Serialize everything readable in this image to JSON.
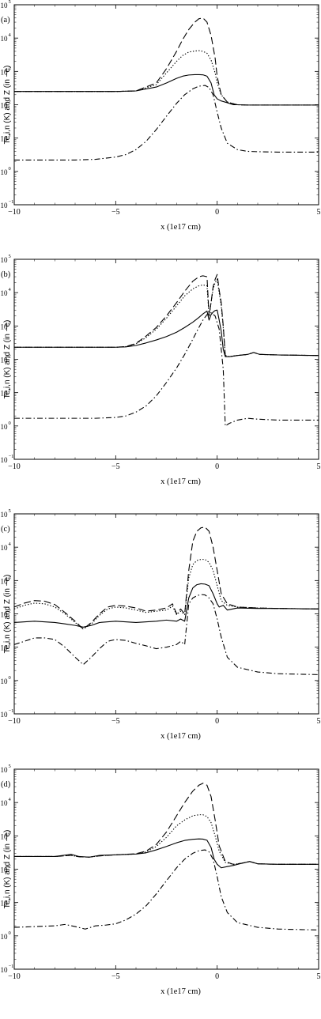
{
  "chart_data": [
    {
      "type": "line",
      "panel_label": "(a)",
      "ylabel": "Te,i,n (K) and Z (in −e)",
      "xlabel": "x (1e17 cm)",
      "xlim": [
        -10,
        5
      ],
      "ylim_log10": [
        -1,
        5
      ],
      "y_scale": "log",
      "x_ticks": [
        "−10",
        "−5",
        "0",
        "5"
      ],
      "y_ticks": [
        "10⁻¹",
        "10⁰",
        "10¹",
        "10²",
        "10³",
        "10⁴",
        "10⁵"
      ],
      "grid": false,
      "series": [
        {
          "style": "dashed",
          "x": [
            -10,
            -7,
            -5,
            -4,
            -3,
            -2.5,
            -2,
            -1.7,
            -1.4,
            -1.1,
            -0.9,
            -0.7,
            -0.5,
            -0.3,
            -0.1,
            0,
            0.2,
            0.5,
            1,
            1.5,
            2,
            3,
            5
          ],
          "y": [
            250,
            250,
            250,
            260,
            450,
            1200,
            4000,
            9000,
            18000,
            30000,
            38000,
            40000,
            30000,
            12000,
            2500,
            700,
            200,
            120,
            100,
            98,
            98,
            98,
            98
          ]
        },
        {
          "style": "dotted",
          "x": [
            -10,
            -7,
            -5,
            -4,
            -3,
            -2.5,
            -2,
            -1.7,
            -1.4,
            -1.1,
            -0.9,
            -0.7,
            -0.5,
            -0.3,
            -0.1,
            0,
            0.2,
            0.5,
            1,
            1.5,
            2,
            3,
            5
          ],
          "y": [
            250,
            250,
            250,
            260,
            400,
            900,
            2000,
            3000,
            3800,
            4100,
            4200,
            4000,
            3500,
            2200,
            900,
            450,
            200,
            120,
            100,
            98,
            98,
            98,
            98
          ]
        },
        {
          "style": "solid",
          "x": [
            -10,
            -7,
            -5,
            -4,
            -3,
            -2.5,
            -2,
            -1.7,
            -1.4,
            -1.1,
            -0.9,
            -0.7,
            -0.5,
            -0.3,
            -0.15,
            0,
            0.2,
            0.5,
            0.8,
            1,
            1.5,
            2,
            3,
            5
          ],
          "y": [
            250,
            250,
            250,
            260,
            340,
            450,
            620,
            720,
            780,
            800,
            800,
            790,
            720,
            450,
            200,
            150,
            130,
            115,
            100,
            100,
            98,
            98,
            98,
            98
          ]
        },
        {
          "style": "dash-dot",
          "x": [
            -10,
            -7,
            -6,
            -5,
            -4.5,
            -4,
            -3.5,
            -3,
            -2.5,
            -2,
            -1.6,
            -1.2,
            -0.9,
            -0.6,
            -0.4,
            -0.2,
            0,
            0.2,
            0.5,
            1,
            1.5,
            2,
            3,
            5
          ],
          "y": [
            2.2,
            2.2,
            2.3,
            2.7,
            3.2,
            4.5,
            8,
            18,
            45,
            110,
            200,
            300,
            360,
            380,
            330,
            200,
            60,
            20,
            7,
            4.5,
            4,
            3.9,
            3.8,
            3.8
          ]
        }
      ]
    },
    {
      "type": "line",
      "panel_label": "(b)",
      "ylabel": "Te,i,n (K) and Z (in −e)",
      "xlabel": "x (1e17 cm)",
      "xlim": [
        -10,
        5
      ],
      "ylim_log10": [
        -1,
        5
      ],
      "y_scale": "log",
      "x_ticks": [
        "−10",
        "−5",
        "0",
        "5"
      ],
      "y_ticks": [
        "10⁻¹",
        "10⁰",
        "10¹",
        "10²",
        "10³",
        "10⁴",
        "10⁵"
      ],
      "grid": false,
      "series": [
        {
          "style": "dashed",
          "x": [
            -10,
            -6,
            -5,
            -4.5,
            -4,
            -3.5,
            -3,
            -2.5,
            -2,
            -1.6,
            -1.2,
            -0.9,
            -0.7,
            -0.5,
            -0.4,
            -0.3,
            -0.2,
            -0.1,
            0,
            0.1,
            0.2,
            0.3,
            0.4,
            0.6,
            1,
            1.5,
            1.8,
            2.1,
            3,
            5
          ],
          "y": [
            230,
            230,
            230,
            240,
            300,
            500,
            900,
            2000,
            5000,
            11000,
            22000,
            30000,
            32000,
            30000,
            2000,
            5000,
            15000,
            25000,
            35000,
            12000,
            5000,
            1000,
            130,
            120,
            130,
            140,
            160,
            140,
            135,
            130
          ]
        },
        {
          "style": "dotted",
          "x": [
            -10,
            -6,
            -5,
            -4.5,
            -4,
            -3.5,
            -3,
            -2.5,
            -2,
            -1.6,
            -1.2,
            -0.9,
            -0.7,
            -0.5,
            -0.4,
            -0.3,
            -0.2,
            -0.1,
            0,
            0.1,
            0.2,
            0.3,
            0.4,
            0.6,
            1,
            1.5,
            1.8,
            2.1,
            3,
            5
          ],
          "y": [
            230,
            230,
            230,
            240,
            290,
            450,
            800,
            1700,
            4000,
            8000,
            13000,
            16000,
            17000,
            16000,
            2000,
            5000,
            13000,
            20000,
            25000,
            10000,
            4000,
            900,
            130,
            120,
            130,
            140,
            160,
            140,
            135,
            130
          ]
        },
        {
          "style": "solid",
          "x": [
            -10,
            -6,
            -5,
            -4.5,
            -4,
            -3.5,
            -3,
            -2.5,
            -2,
            -1.6,
            -1.2,
            -0.9,
            -0.7,
            -0.5,
            -0.4,
            -0.3,
            -0.2,
            -0.1,
            0,
            0.1,
            0.2,
            0.3,
            0.4,
            0.6,
            1,
            1.5,
            1.8,
            2.1,
            3,
            5
          ],
          "y": [
            230,
            230,
            230,
            235,
            260,
            310,
            380,
            480,
            650,
            900,
            1300,
            1800,
            2300,
            2800,
            1500,
            2200,
            2600,
            2900,
            3000,
            1500,
            700,
            200,
            120,
            120,
            130,
            140,
            160,
            140,
            135,
            130
          ]
        },
        {
          "style": "dash-dot",
          "x": [
            -10,
            -6,
            -5,
            -4.5,
            -4,
            -3.5,
            -3,
            -2.5,
            -2,
            -1.6,
            -1.2,
            -0.9,
            -0.7,
            -0.5,
            -0.3,
            -0.1,
            0.1,
            0.3,
            0.4,
            0.6,
            1,
            1.5,
            2,
            3,
            5
          ],
          "y": [
            1.7,
            1.7,
            1.8,
            2,
            2.6,
            4,
            8,
            20,
            55,
            140,
            400,
            900,
            1500,
            2200,
            2500,
            2000,
            800,
            50,
            1,
            1.2,
            1.5,
            1.7,
            1.6,
            1.5,
            1.5
          ]
        }
      ]
    },
    {
      "type": "line",
      "panel_label": "(c)",
      "ylabel": "Te,i,n (K) and Z (in −e)",
      "xlabel": "x (1e17 cm)",
      "xlim": [
        -10,
        5
      ],
      "ylim_log10": [
        -1,
        5
      ],
      "y_scale": "log",
      "x_ticks": [
        "−10",
        "−5",
        "0",
        "5"
      ],
      "y_ticks": [
        "10⁻¹",
        "10⁰",
        "10¹",
        "10²",
        "10³",
        "10⁴",
        "10⁵"
      ],
      "grid": false,
      "series": [
        {
          "style": "dashed",
          "x": [
            -10,
            -9.5,
            -9,
            -8.5,
            -8,
            -7.5,
            -7,
            -6.6,
            -6.2,
            -5.8,
            -5.4,
            -5,
            -4.5,
            -4,
            -3.5,
            -3,
            -2.5,
            -2.2,
            -2,
            -1.8,
            -1.6,
            -1.4,
            -1.2,
            -1,
            -0.8,
            -0.6,
            -0.4,
            -0.2,
            0,
            0.2,
            0.5,
            1,
            2,
            3,
            5
          ],
          "y": [
            160,
            210,
            250,
            240,
            190,
            110,
            60,
            35,
            55,
            100,
            160,
            180,
            170,
            150,
            120,
            130,
            150,
            200,
            100,
            140,
            100,
            2000,
            15000,
            30000,
            38000,
            40000,
            30000,
            10000,
            2000,
            400,
            200,
            160,
            150,
            145,
            140
          ]
        },
        {
          "style": "dotted",
          "x": [
            -10,
            -9.5,
            -9,
            -8.5,
            -8,
            -7.5,
            -7,
            -6.6,
            -6.2,
            -5.8,
            -5.4,
            -5,
            -4.5,
            -4,
            -3.5,
            -3,
            -2.5,
            -2.2,
            -2,
            -1.8,
            -1.6,
            -1.4,
            -1.2,
            -1,
            -0.8,
            -0.6,
            -0.4,
            -0.2,
            0,
            0.2,
            0.5,
            1,
            2,
            3,
            5
          ],
          "y": [
            140,
            180,
            210,
            200,
            160,
            100,
            55,
            35,
            50,
            90,
            140,
            160,
            150,
            130,
            110,
            120,
            130,
            170,
            95,
            120,
            95,
            1200,
            3000,
            4000,
            4300,
            4300,
            3500,
            2000,
            700,
            250,
            180,
            160,
            150,
            145,
            140
          ]
        },
        {
          "style": "solid",
          "x": [
            -10,
            -9,
            -8,
            -7.5,
            -7,
            -6.6,
            -6.2,
            -5.8,
            -5,
            -4,
            -3,
            -2.5,
            -2,
            -1.8,
            -1.6,
            -1.4,
            -1.2,
            -1,
            -0.8,
            -0.6,
            -0.4,
            -0.2,
            0,
            0.1,
            0.3,
            0.5,
            1,
            2,
            3,
            5
          ],
          "y": [
            55,
            60,
            55,
            50,
            45,
            40,
            45,
            55,
            60,
            55,
            60,
            65,
            60,
            70,
            60,
            300,
            600,
            750,
            800,
            780,
            700,
            400,
            200,
            160,
            180,
            130,
            150,
            145,
            145,
            140
          ]
        },
        {
          "style": "dash-dot",
          "x": [
            -10,
            -9.5,
            -9,
            -8.5,
            -8,
            -7.5,
            -7,
            -6.6,
            -6.2,
            -5.8,
            -5.4,
            -5,
            -4.5,
            -4,
            -3.5,
            -3,
            -2.5,
            -2,
            -1.8,
            -1.6,
            -1.4,
            -1.2,
            -1,
            -0.8,
            -0.6,
            -0.4,
            -0.2,
            0,
            0.2,
            0.5,
            1,
            2,
            3,
            5
          ],
          "y": [
            12,
            15,
            19,
            19,
            17,
            10,
            5,
            3,
            5,
            9,
            15,
            17,
            16,
            13,
            11,
            9,
            10,
            12,
            15,
            12,
            200,
            300,
            350,
            380,
            370,
            300,
            200,
            70,
            20,
            5,
            2.5,
            1.8,
            1.6,
            1.5
          ]
        }
      ]
    },
    {
      "type": "line",
      "panel_label": "(d)",
      "ylabel": "Te,i,n (K) and Z (in −e)",
      "xlabel": "x (1e17 cm)",
      "xlim": [
        -10,
        5
      ],
      "ylim_log10": [
        -1,
        5
      ],
      "y_scale": "log",
      "x_ticks": [
        "−10",
        "−5",
        "0",
        "5"
      ],
      "y_ticks": [
        "10⁻¹",
        "10⁰",
        "10¹",
        "10²",
        "10³",
        "10⁴",
        "10⁵"
      ],
      "grid": false,
      "series": [
        {
          "style": "dashed",
          "x": [
            -10,
            -8,
            -7.2,
            -6.8,
            -6.3,
            -5.8,
            -5,
            -4,
            -3.5,
            -3,
            -2.5,
            -2,
            -1.6,
            -1.2,
            -0.9,
            -0.7,
            -0.5,
            -0.3,
            -0.1,
            0.1,
            0.4,
            0.8,
            1.2,
            1.6,
            2,
            3,
            5
          ],
          "y": [
            240,
            240,
            260,
            235,
            230,
            250,
            270,
            290,
            350,
            550,
            1300,
            4000,
            10000,
            22000,
            33000,
            38000,
            33000,
            15000,
            3000,
            500,
            170,
            140,
            150,
            170,
            145,
            140,
            140
          ]
        },
        {
          "style": "dotted",
          "x": [
            -10,
            -8,
            -7.2,
            -6.8,
            -6.3,
            -5.8,
            -5,
            -4,
            -3.5,
            -3,
            -2.5,
            -2,
            -1.6,
            -1.2,
            -0.9,
            -0.7,
            -0.5,
            -0.3,
            -0.1,
            0.1,
            0.4,
            0.8,
            1.2,
            1.6,
            2,
            3,
            5
          ],
          "y": [
            240,
            240,
            260,
            235,
            230,
            250,
            270,
            285,
            330,
            480,
            900,
            2000,
            3000,
            4000,
            4300,
            4300,
            3800,
            2500,
            1000,
            350,
            160,
            140,
            150,
            170,
            145,
            140,
            140
          ]
        },
        {
          "style": "solid",
          "x": [
            -10,
            -8,
            -7.2,
            -6.8,
            -6.3,
            -5.8,
            -5,
            -4,
            -3.5,
            -3,
            -2.5,
            -2,
            -1.6,
            -1.2,
            -0.9,
            -0.7,
            -0.5,
            -0.3,
            -0.15,
            0,
            0.2,
            0.5,
            0.8,
            1.2,
            1.6,
            2,
            3,
            5
          ],
          "y": [
            240,
            240,
            280,
            240,
            230,
            260,
            270,
            285,
            310,
            380,
            480,
            620,
            730,
            790,
            810,
            800,
            740,
            450,
            200,
            140,
            110,
            120,
            130,
            150,
            170,
            145,
            140,
            140
          ]
        },
        {
          "style": "dash-dot",
          "x": [
            -10,
            -8,
            -7.5,
            -7,
            -6.5,
            -6,
            -5.5,
            -5,
            -4.5,
            -4,
            -3.5,
            -3,
            -2.5,
            -2,
            -1.6,
            -1.2,
            -0.9,
            -0.6,
            -0.4,
            -0.2,
            0,
            0.2,
            0.5,
            1,
            2,
            3,
            5
          ],
          "y": [
            1.8,
            2,
            2.2,
            1.9,
            1.6,
            2,
            2.1,
            2.3,
            3,
            4.5,
            8,
            18,
            45,
            110,
            200,
            300,
            360,
            380,
            330,
            200,
            60,
            15,
            5,
            2.5,
            1.8,
            1.6,
            1.5
          ]
        }
      ]
    }
  ]
}
